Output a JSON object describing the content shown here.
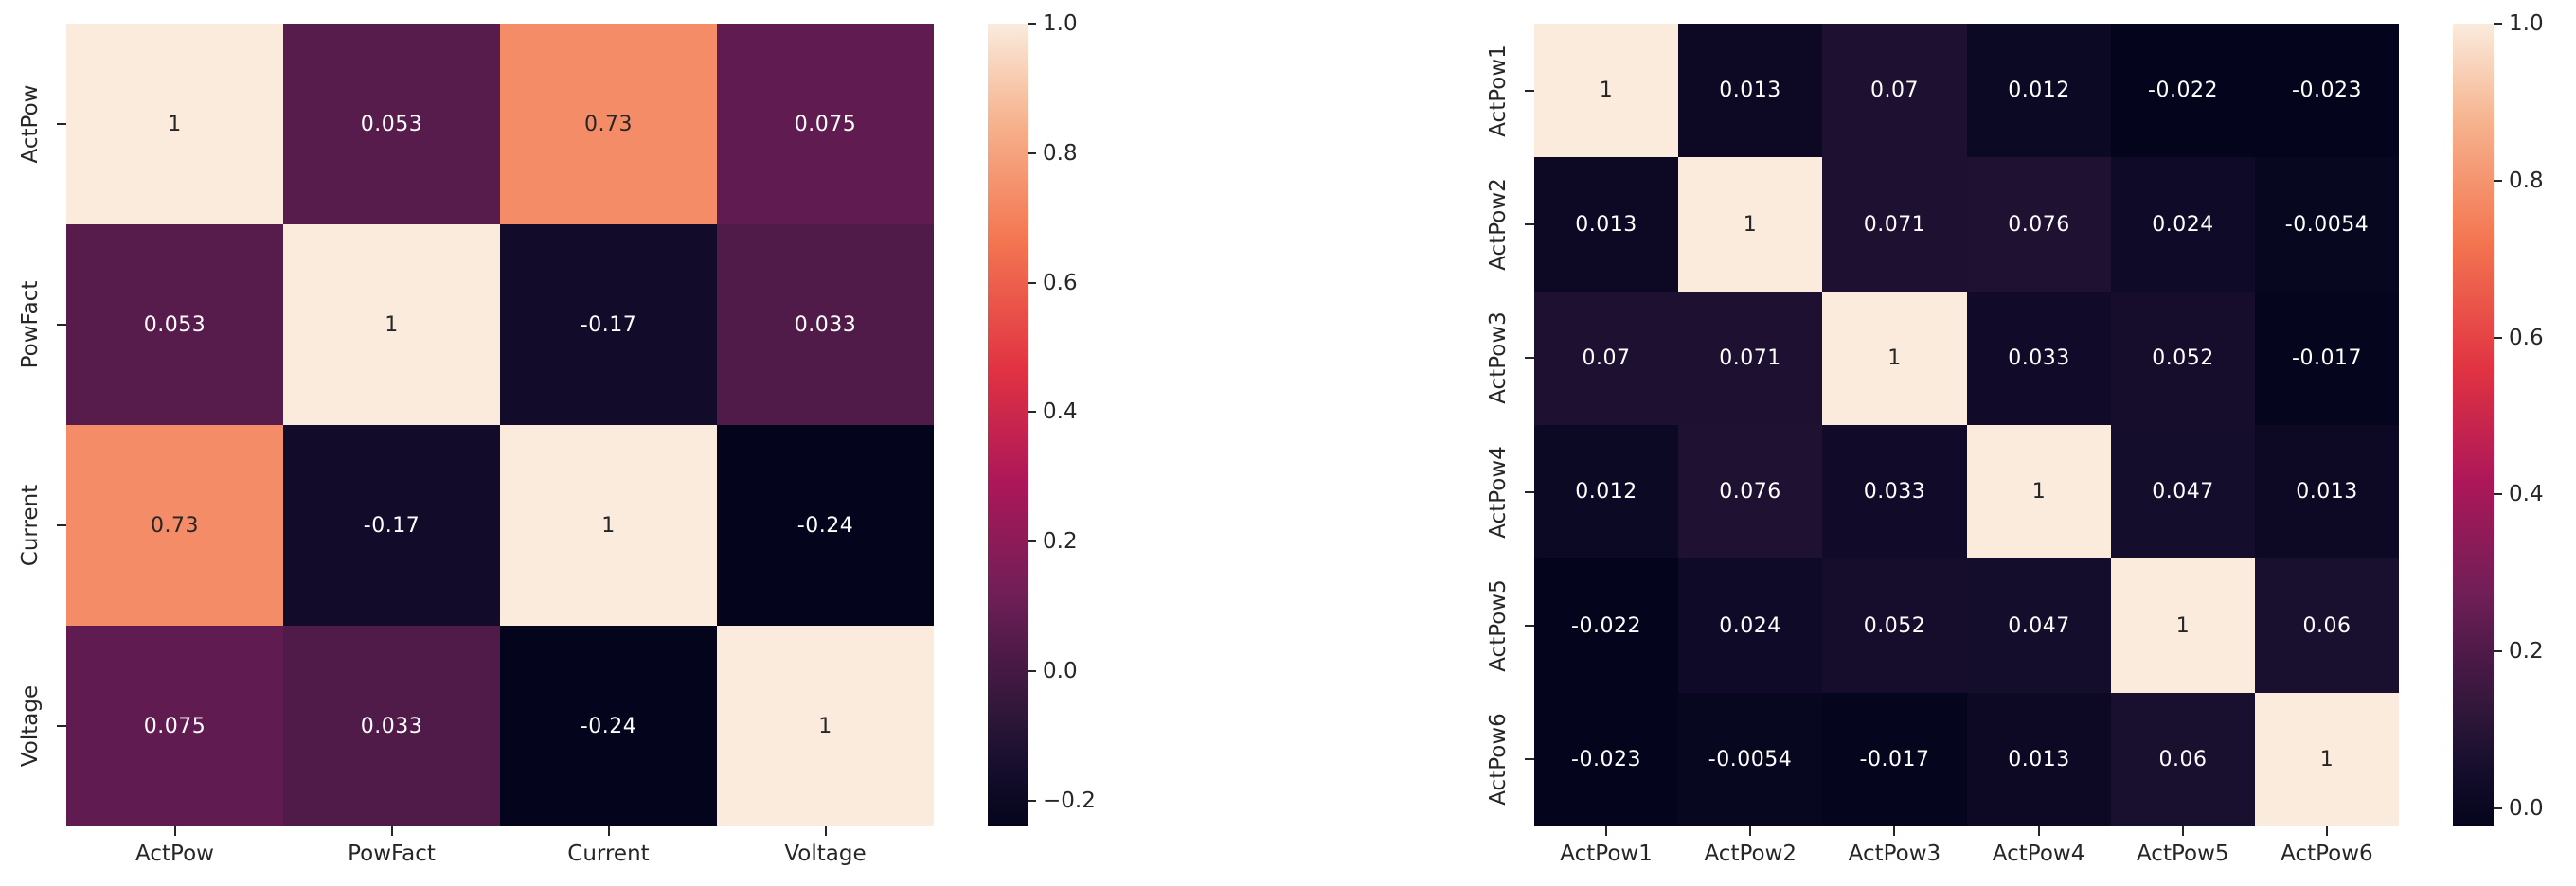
{
  "page": {
    "background": "#ffffff",
    "description": "Two annotated correlation heatmaps side by side with rocket colormap colorbars"
  },
  "colormap": {
    "name": "rocket",
    "stops": [
      {
        "t": 0.0,
        "color": "#04051C"
      },
      {
        "t": 0.07,
        "color": "#150D2C"
      },
      {
        "t": 0.14,
        "color": "#2F1739"
      },
      {
        "t": 0.22,
        "color": "#501A49"
      },
      {
        "t": 0.29,
        "color": "#701F57"
      },
      {
        "t": 0.43,
        "color": "#AD1759"
      },
      {
        "t": 0.57,
        "color": "#E13342"
      },
      {
        "t": 0.73,
        "color": "#F37651"
      },
      {
        "t": 0.88,
        "color": "#F6B48F"
      },
      {
        "t": 1.0,
        "color": "#FAEBDD"
      }
    ],
    "annot_text_dark": "#262626",
    "annot_text_light": "#ffffff",
    "tick_color": "#262626"
  },
  "chart_data": [
    {
      "type": "heatmap",
      "title": "",
      "xlabel": "",
      "ylabel": "",
      "categories": [
        "ActPow",
        "PowFact",
        "Current",
        "Voltage"
      ],
      "matrix": [
        [
          1,
          0.053,
          0.73,
          0.075
        ],
        [
          0.053,
          1,
          -0.17,
          0.033
        ],
        [
          0.73,
          -0.17,
          1,
          -0.24
        ],
        [
          0.075,
          0.033,
          -0.24,
          1
        ]
      ],
      "vmin": -0.24,
      "vmax": 1.0,
      "grid": false,
      "legend_position": "right-colorbar",
      "colorbar_ticks": [
        {
          "value": 1.0,
          "label": "1.0"
        },
        {
          "value": 0.8,
          "label": "0.8"
        },
        {
          "value": 0.6,
          "label": "0.6"
        },
        {
          "value": 0.4,
          "label": "0.4"
        },
        {
          "value": 0.2,
          "label": "0.2"
        },
        {
          "value": 0.0,
          "label": "0.0"
        },
        {
          "value": -0.2,
          "label": "−0.2"
        }
      ]
    },
    {
      "type": "heatmap",
      "title": "",
      "xlabel": "",
      "ylabel": "",
      "categories": [
        "ActPow1",
        "ActPow2",
        "ActPow3",
        "ActPow4",
        "ActPow5",
        "ActPow6"
      ],
      "matrix": [
        [
          1,
          0.013,
          0.07,
          0.012,
          -0.022,
          -0.023
        ],
        [
          0.013,
          1,
          0.071,
          0.076,
          0.024,
          -0.0054
        ],
        [
          0.07,
          0.071,
          1,
          0.033,
          0.052,
          -0.017
        ],
        [
          0.012,
          0.076,
          0.033,
          1,
          0.047,
          0.013
        ],
        [
          -0.022,
          0.024,
          0.052,
          0.047,
          1,
          0.06
        ],
        [
          -0.023,
          -0.0054,
          -0.017,
          0.013,
          0.06,
          1
        ]
      ],
      "vmin": -0.023,
      "vmax": 1.0,
      "grid": false,
      "legend_position": "right-colorbar",
      "colorbar_ticks": [
        {
          "value": 1.0,
          "label": "1.0"
        },
        {
          "value": 0.8,
          "label": "0.8"
        },
        {
          "value": 0.6,
          "label": "0.6"
        },
        {
          "value": 0.4,
          "label": "0.4"
        },
        {
          "value": 0.2,
          "label": "0.2"
        },
        {
          "value": 0.0,
          "label": "0.0"
        }
      ]
    }
  ]
}
